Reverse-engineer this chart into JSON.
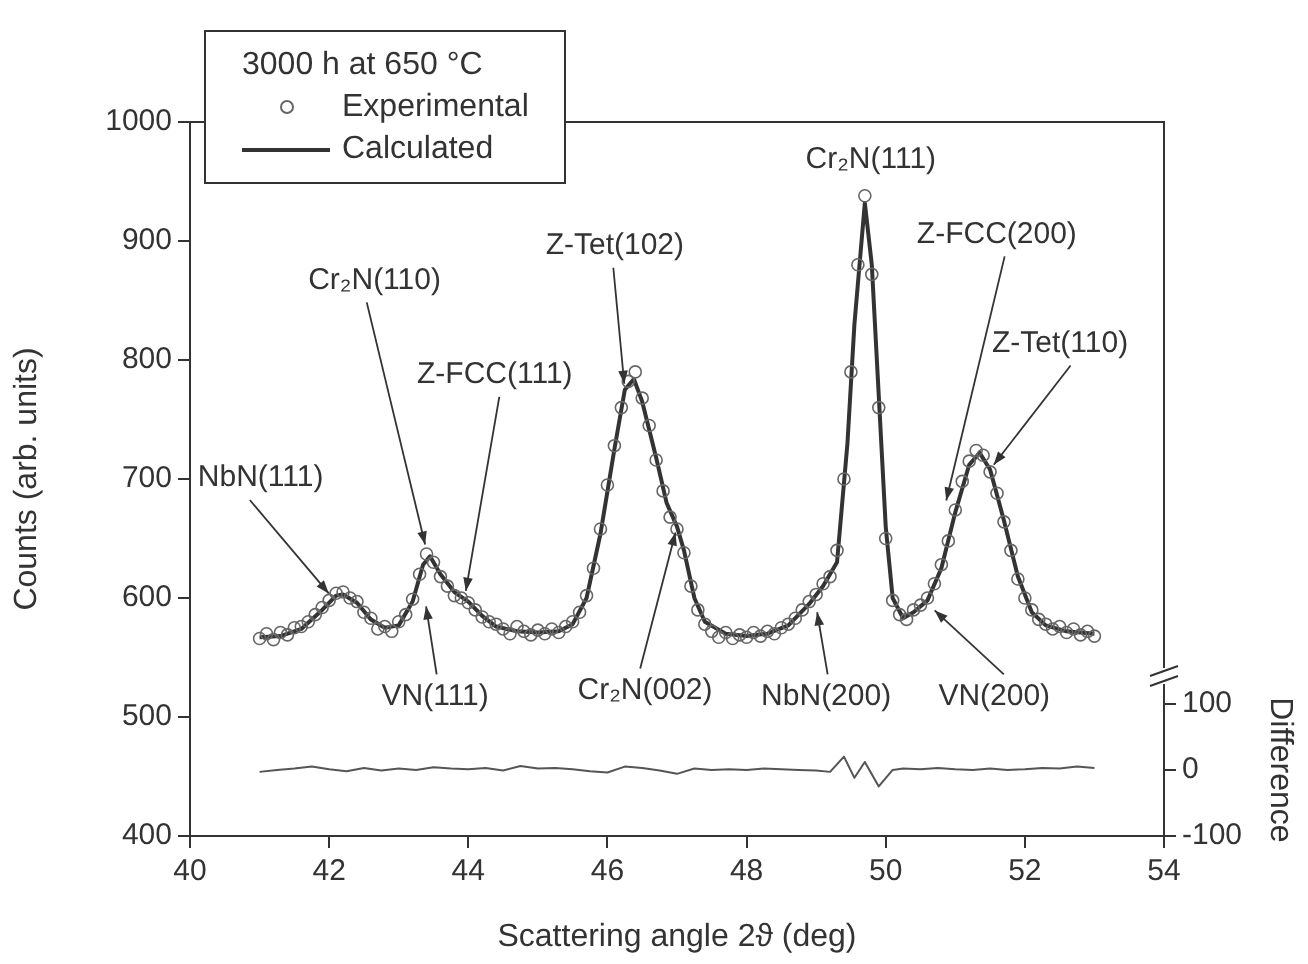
{
  "chart_data": {
    "type": "line",
    "xlabel": "Scattering angle 2ϑ (deg)",
    "ylabel": "Counts (arb. units)",
    "y2label": "Difference",
    "legend_title": "3000 h at 650 °C",
    "legend": "top left",
    "xlim": [
      40,
      54
    ],
    "xticks": [
      40,
      42,
      44,
      46,
      48,
      50,
      52,
      54
    ],
    "ylim": [
      400,
      1000
    ],
    "yticks": [
      400,
      500,
      600,
      700,
      800,
      900,
      1000
    ],
    "y2lim": [
      -100,
      980
    ],
    "y2ticks": [
      -100,
      0,
      100
    ],
    "grid": false,
    "series": [
      {
        "name": "Experimental",
        "type": "scatter",
        "marker": "circle",
        "color": "#666666",
        "x": [
          41.0,
          41.1,
          41.2,
          41.3,
          41.4,
          41.5,
          41.6,
          41.7,
          41.8,
          41.9,
          42.0,
          42.1,
          42.2,
          42.3,
          42.4,
          42.5,
          42.6,
          42.7,
          42.8,
          42.9,
          43.0,
          43.1,
          43.2,
          43.3,
          43.4,
          43.5,
          43.6,
          43.7,
          43.8,
          43.9,
          44.0,
          44.1,
          44.2,
          44.3,
          44.4,
          44.5,
          44.6,
          44.7,
          44.8,
          44.9,
          45.0,
          45.1,
          45.2,
          45.3,
          45.4,
          45.5,
          45.6,
          45.7,
          45.8,
          45.9,
          46.0,
          46.1,
          46.2,
          46.3,
          46.4,
          46.5,
          46.6,
          46.7,
          46.8,
          46.9,
          47.0,
          47.1,
          47.2,
          47.3,
          47.4,
          47.5,
          47.6,
          47.7,
          47.8,
          47.9,
          48.0,
          48.1,
          48.2,
          48.3,
          48.4,
          48.5,
          48.6,
          48.7,
          48.8,
          48.9,
          49.0,
          49.1,
          49.2,
          49.3,
          49.4,
          49.5,
          49.6,
          49.7,
          49.8,
          49.9,
          50.0,
          50.1,
          50.2,
          50.3,
          50.4,
          50.5,
          50.6,
          50.7,
          50.8,
          50.9,
          51.0,
          51.1,
          51.2,
          51.3,
          51.4,
          51.5,
          51.6,
          51.7,
          51.8,
          51.9,
          52.0,
          52.1,
          52.2,
          52.3,
          52.4,
          52.5,
          52.6,
          52.7,
          52.8,
          52.9,
          53.0
        ],
        "values": [
          566,
          570,
          565,
          571,
          569,
          575,
          576,
          580,
          586,
          592,
          598,
          604,
          605,
          600,
          597,
          588,
          583,
          574,
          576,
          572,
          580,
          586,
          599,
          620,
          637,
          630,
          618,
          610,
          602,
          600,
          596,
          590,
          584,
          580,
          578,
          574,
          570,
          576,
          572,
          569,
          573,
          570,
          574,
          571,
          576,
          580,
          588,
          602,
          625,
          658,
          695,
          728,
          760,
          782,
          790,
          768,
          745,
          716,
          690,
          668,
          658,
          638,
          610,
          590,
          578,
          572,
          567,
          571,
          566,
          569,
          567,
          571,
          568,
          572,
          570,
          575,
          578,
          583,
          590,
          597,
          603,
          612,
          618,
          640,
          700,
          790,
          880,
          938,
          872,
          760,
          650,
          598,
          586,
          582,
          590,
          594,
          600,
          612,
          628,
          648,
          674,
          698,
          715,
          724,
          720,
          706,
          688,
          664,
          640,
          616,
          600,
          590,
          582,
          578,
          574,
          576,
          571,
          574,
          569,
          572,
          568
        ]
      },
      {
        "name": "Calculated",
        "type": "line",
        "line_style": "solid",
        "color": "#333333",
        "x": [
          41.0,
          41.3,
          41.6,
          41.9,
          42.1,
          42.2,
          42.4,
          42.6,
          42.8,
          43.0,
          43.2,
          43.35,
          43.45,
          43.6,
          43.8,
          44.0,
          44.2,
          44.4,
          44.7,
          45.0,
          45.3,
          45.5,
          45.7,
          45.9,
          46.1,
          46.25,
          46.38,
          46.5,
          46.7,
          46.85,
          47.0,
          47.1,
          47.25,
          47.4,
          47.7,
          48.0,
          48.3,
          48.6,
          48.9,
          49.1,
          49.3,
          49.45,
          49.55,
          49.7,
          49.8,
          49.9,
          50.0,
          50.1,
          50.25,
          50.4,
          50.6,
          50.8,
          51.0,
          51.2,
          51.35,
          51.5,
          51.7,
          51.9,
          52.1,
          52.3,
          52.6,
          53.0
        ],
        "values": [
          567,
          568,
          574,
          590,
          602,
          603,
          596,
          582,
          575,
          577,
          597,
          628,
          635,
          620,
          605,
          597,
          585,
          576,
          572,
          571,
          572,
          578,
          600,
          654,
          725,
          775,
          784,
          765,
          718,
          680,
          660,
          640,
          600,
          580,
          570,
          568,
          570,
          577,
          595,
          610,
          630,
          730,
          830,
          932,
          880,
          770,
          660,
          600,
          583,
          588,
          598,
          625,
          672,
          712,
          722,
          708,
          665,
          618,
          588,
          577,
          572,
          570
        ]
      },
      {
        "type": "line",
        "axis": "y2",
        "line_style": "solid",
        "color": "#555555",
        "x": [
          41.0,
          41.25,
          41.5,
          41.75,
          42.0,
          42.25,
          42.5,
          42.75,
          43.0,
          43.25,
          43.5,
          43.75,
          44.0,
          44.25,
          44.5,
          44.75,
          45.0,
          45.25,
          45.5,
          45.75,
          46.0,
          46.25,
          46.5,
          46.75,
          47.0,
          47.25,
          47.5,
          47.75,
          48.0,
          48.25,
          48.5,
          48.75,
          49.0,
          49.2,
          49.4,
          49.55,
          49.7,
          49.9,
          50.1,
          50.25,
          50.5,
          50.75,
          51.0,
          51.25,
          51.5,
          51.75,
          52.0,
          52.25,
          52.5,
          52.75,
          53.0
        ],
        "values": [
          -3,
          0,
          2,
          5,
          1,
          -2,
          3,
          -1,
          2,
          0,
          4,
          2,
          1,
          3,
          -1,
          6,
          2,
          3,
          1,
          -2,
          -4,
          5,
          3,
          -1,
          -6,
          2,
          0,
          1,
          0,
          2,
          1,
          0,
          -1,
          -3,
          20,
          -12,
          12,
          -25,
          0,
          2,
          1,
          3,
          1,
          0,
          2,
          0,
          1,
          3,
          2,
          5,
          3
        ]
      }
    ],
    "annotations": [
      {
        "text": "NbN(111)",
        "x": 42.05,
        "y": 600
      },
      {
        "text": "Cr₂N(110)",
        "x": 43.4,
        "y": 640
      },
      {
        "text": "Z-FCC(111)",
        "x": 43.95,
        "y": 601
      },
      {
        "text": "Z-Tet(102)",
        "x": 46.25,
        "y": 775
      },
      {
        "text": "Cr₂N(111)",
        "x": 49.7,
        "y": 935
      },
      {
        "text": "Z-FCC(200)",
        "x": 50.85,
        "y": 677
      },
      {
        "text": "Z-Tet(110)",
        "x": 51.5,
        "y": 708
      },
      {
        "text": "VN(111)",
        "x": 43.38,
        "y": 598
      },
      {
        "text": "Cr₂N(002)",
        "x": 47.0,
        "y": 660
      },
      {
        "text": "NbN(200)",
        "x": 49.0,
        "y": 593
      },
      {
        "text": "VN(200)",
        "x": 50.64,
        "y": 593
      }
    ]
  }
}
